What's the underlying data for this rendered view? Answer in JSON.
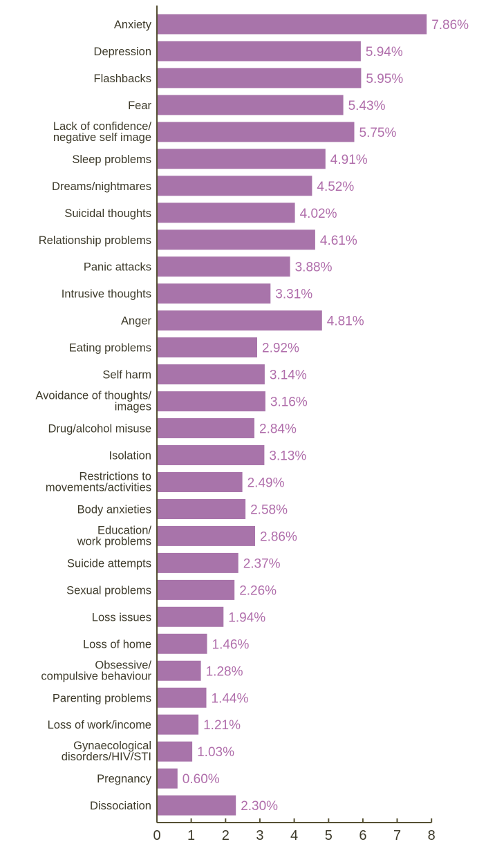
{
  "chart_data": {
    "type": "bar",
    "orientation": "horizontal",
    "categories": [
      [
        "Anxiety"
      ],
      [
        "Depression"
      ],
      [
        "Flashbacks"
      ],
      [
        "Fear"
      ],
      [
        "Lack of confidence/",
        "negative self image"
      ],
      [
        "Sleep problems"
      ],
      [
        "Dreams/nightmares"
      ],
      [
        "Suicidal thoughts"
      ],
      [
        "Relationship problems"
      ],
      [
        "Panic attacks"
      ],
      [
        "Intrusive thoughts"
      ],
      [
        "Anger"
      ],
      [
        "Eating problems"
      ],
      [
        "Self harm"
      ],
      [
        "Avoidance of thoughts/",
        "images"
      ],
      [
        "Drug/alcohol misuse"
      ],
      [
        "Isolation"
      ],
      [
        "Restrictions to",
        "movements/activities"
      ],
      [
        "Body anxieties"
      ],
      [
        "Education/",
        "work problems"
      ],
      [
        "Suicide attempts"
      ],
      [
        "Sexual problems"
      ],
      [
        "Loss issues"
      ],
      [
        "Loss of home"
      ],
      [
        "Obsessive/",
        "compulsive behaviour"
      ],
      [
        "Parenting problems"
      ],
      [
        "Loss of work/income"
      ],
      [
        "Gynaecological",
        "disorders/HIV/STI"
      ],
      [
        "Pregnancy"
      ],
      [
        "Dissociation"
      ]
    ],
    "values": [
      7.86,
      5.94,
      5.95,
      5.43,
      5.75,
      4.91,
      4.52,
      4.02,
      4.61,
      3.88,
      3.31,
      4.81,
      2.92,
      3.14,
      3.16,
      2.84,
      3.13,
      2.49,
      2.58,
      2.86,
      2.37,
      2.26,
      1.94,
      1.46,
      1.28,
      1.44,
      1.21,
      1.03,
      0.6,
      2.3
    ],
    "value_labels": [
      "7.86%",
      "5.94%",
      "5.95%",
      "5.43%",
      "5.75%",
      "4.91%",
      "4.52%",
      "4.02%",
      "4.61%",
      "3.88%",
      "3.31%",
      "4.81%",
      "2.92%",
      "3.14%",
      "3.16%",
      "2.84%",
      "3.13%",
      "2.49%",
      "2.58%",
      "2.86%",
      "2.37%",
      "2.26%",
      "1.94%",
      "1.46%",
      "1.28%",
      "1.44%",
      "1.21%",
      "1.03%",
      "0.60%",
      "2.30%"
    ],
    "xlim": [
      0,
      8
    ],
    "xticks": [
      0,
      1,
      2,
      3,
      4,
      5,
      6,
      7,
      8
    ],
    "title": "",
    "xlabel": "",
    "ylabel": "",
    "grid": false,
    "colors": {
      "bar": "#a874aa",
      "value_label": "#b06eab",
      "text": "#3d3a2a",
      "axis": "#555033"
    }
  }
}
